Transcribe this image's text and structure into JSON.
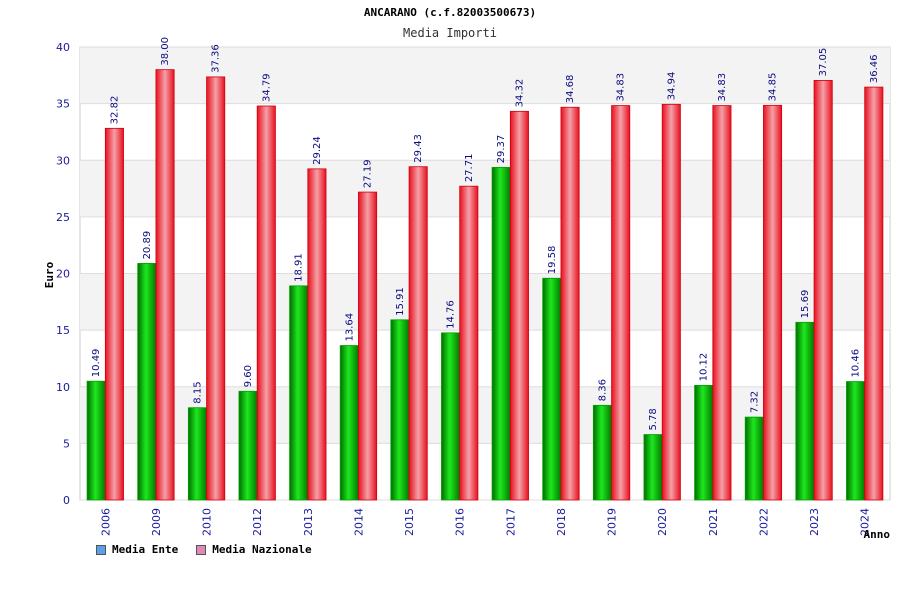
{
  "chart_data": {
    "type": "bar",
    "title": "ANCARANO (c.f.82003500673)",
    "subtitle": "Media Importi",
    "ylabel": "Euro",
    "xlabel": "Anno",
    "ylim": [
      0,
      40
    ],
    "yticks": [
      0,
      5,
      10,
      15,
      20,
      25,
      30,
      35,
      40
    ],
    "grid": true,
    "legend_position": "bottom-left",
    "categories": [
      "2006",
      "2009",
      "2010",
      "2012",
      "2013",
      "2014",
      "2015",
      "2016",
      "2017",
      "2018",
      "2019",
      "2020",
      "2021",
      "2022",
      "2023",
      "2024"
    ],
    "series": [
      {
        "name": "Media Ente",
        "color": "#00b400",
        "legend_color": "#5aa0e8",
        "values": [
          10.49,
          20.89,
          8.15,
          9.6,
          18.91,
          13.64,
          15.91,
          14.76,
          29.37,
          19.58,
          8.36,
          5.78,
          10.12,
          7.32,
          15.69,
          10.46
        ],
        "labels": [
          "10.49",
          "20.89",
          "8.15",
          "9.60",
          "18.91",
          "13.64",
          "15.91",
          "14.76",
          "29.37",
          "19.58",
          "8.36",
          "5.78",
          "10.12",
          "7.32",
          "15.69",
          "10.46"
        ]
      },
      {
        "name": "Media Nazionale",
        "color": "#e8101e",
        "legend_color": "#e088b8",
        "values": [
          32.82,
          38.0,
          37.36,
          34.79,
          29.24,
          27.19,
          29.43,
          27.71,
          34.32,
          34.68,
          34.83,
          34.94,
          34.83,
          34.85,
          37.05,
          36.46
        ],
        "labels": [
          "32.82",
          "38.00",
          "37.36",
          "34.79",
          "29.24",
          "27.19",
          "29.43",
          "27.71",
          "34.32",
          "34.68",
          "34.83",
          "34.94",
          "34.83",
          "34.85",
          "37.05",
          "36.46"
        ]
      }
    ]
  }
}
